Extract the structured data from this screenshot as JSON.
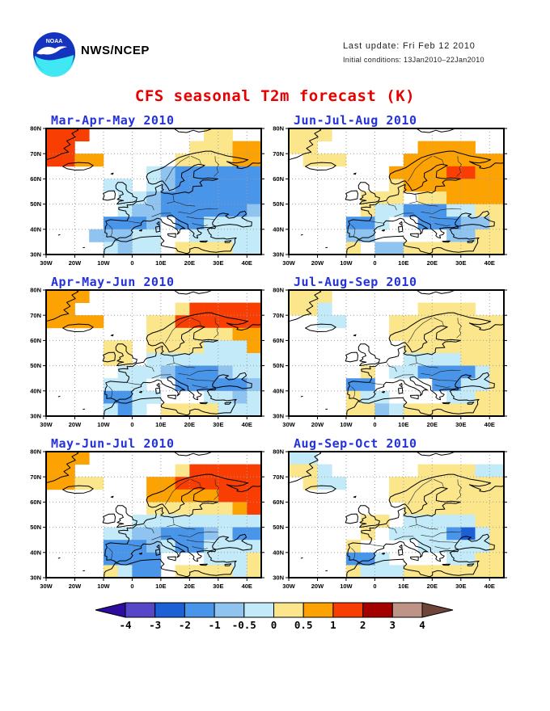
{
  "header": {
    "logo": "noaa-logo",
    "org": "NWS/NCEP",
    "last_update": "Last update: Fri Feb 12 2010",
    "initial_conditions": "Initial conditions: 13Jan2010–22Jan2010"
  },
  "title": "CFS seasonal T2m forecast (K)",
  "colors": {
    "title": "#E80000",
    "panel_title": "#2433D9",
    "frame": "#000000",
    "gridline": "#A0A0A0",
    "coast": "#000000",
    "logo_blue": "#1433BE",
    "logo_cyan": "#3FE8F2"
  },
  "axes": {
    "lat_labels": [
      "80N",
      "70N",
      "60N",
      "50N",
      "40N",
      "30N"
    ],
    "lon_labels": [
      "30W",
      "20W",
      "10W",
      "0",
      "10E",
      "20E",
      "30E",
      "40E"
    ],
    "lat_values": [
      80,
      70,
      60,
      50,
      40,
      30
    ],
    "lon_values": [
      -30,
      -20,
      -10,
      0,
      10,
      20,
      30,
      40
    ]
  },
  "palette": {
    ".": "#FFFFFF",
    "c": "#C2EAF8",
    "l": "#8FC3F0",
    "b": "#4895EA",
    "B": "#1B60D4",
    "P": "#5646C8",
    "y": "#FBE68C",
    "o": "#FCA202",
    "r": "#F93E04",
    "R": "#A50000",
    "T": "#BE9489"
  },
  "colorbar": {
    "labels": [
      "-4",
      "-3",
      "-2",
      "-1",
      "-0.5",
      "0",
      "0.5",
      "1",
      "2",
      "3",
      "4"
    ],
    "segment_keys": [
      "P",
      "B",
      "b",
      "l",
      "c",
      "y",
      "o",
      "r",
      "R",
      "T"
    ],
    "left_arrow": "#2D0C9F",
    "right_arrow": "#6F4439"
  },
  "chart_data": {
    "type": "heatmap",
    "description": "Six seasonal 2m temperature anomaly forecast maps over Europe; each grid row string is a 15-column band (30W-45E, 5 deg cells) from 80N down to 30N; letters key into palette, values are anomaly classes in K per the colorbar",
    "lon_range": [
      -30,
      45
    ],
    "lat_range": [
      30,
      80
    ],
    "panels": [
      {
        "id": "mam",
        "title": "Mar-Apr-May 2010",
        "grid": [
          "rrr........yy..",
          "rr........yyyoo",
          "rroo.....yyyyoo",
          ".......clbbbbbb",
          "....cc.clbbbbbb",
          ".....cclbbbbbbb",
          ".....cllbbbbbbl",
          "....bbbl.bbcccc",
          "...lllcc..ccccc",
          "....clcc.yyyycc"
        ]
      },
      {
        "id": "jja",
        "title": "Jun-Jul-Aug 2010",
        "grid": [
          "yyy............",
          "yy.......oooo..",
          ".yyy....ooooooo",
          ".......oooorroo",
          ".......yooooooo",
          ".....yyy.yyoooo",
          ".....yccbbbccyy",
          "....bbc..bbblly",
          "....ll.....llyy",
          "....y.llyyyyyyy"
        ]
      },
      {
        "id": "amj",
        "title": "Apr-May-Jun 2010",
        "grid": [
          "ooo............",
          "oo.......yrrrrr",
          "oooo...yyrrrrrr",
          ".......yyyyyyoo",
          "....yy.yyyyccco",
          "....yy.cccccccc",
          ".....ccclbbblcc",
          "....ccc..bbbbbl",
          "....bbcc...cclc",
          "....cbc.yyyyccc"
        ]
      },
      {
        "id": "jas",
        "title": "Jul-Aug-Sep 2010",
        "grid": [
          "yyy............",
          "yyc......yyyy..",
          "..cc...yyyyyyyy",
          ".......yyyyyyyy",
          "........yyyyyyy",
          "........ccccyyy",
          ".....y.ccbbbbcy",
          "....bb....bbccy",
          "....ycc....ccyy",
          "....yylcyyyyyyy"
        ]
      },
      {
        "id": "mjj",
        "title": "May-Jun-Jul 2010",
        "grid": [
          "ooo............",
          "oo.......yrrrrr",
          "ooyy...oorrrrrr",
          ".......ooooorrr",
          ".......yyyyyyor",
          "......ccccccccc",
          "....ccllbbblcbb",
          "....bbblcbbcccc",
          "....bbbb...cccy",
          "....ycbb.yyyycy"
        ]
      },
      {
        "id": "aso",
        "title": "Aug-Sep-Oct 2010",
        "grid": [
          "cc.............",
          "yyc......yyyycc",
          ".ycc...yyyyyyyy",
          ".......yyyyyyyy",
          "........yyyyyyy",
          ".....yy.cccccyy",
          ".....y.ccccbBcy",
          "....y....cccccy",
          "....bbc....ccyy",
          "....ycccyyyyyyy"
        ]
      }
    ]
  }
}
